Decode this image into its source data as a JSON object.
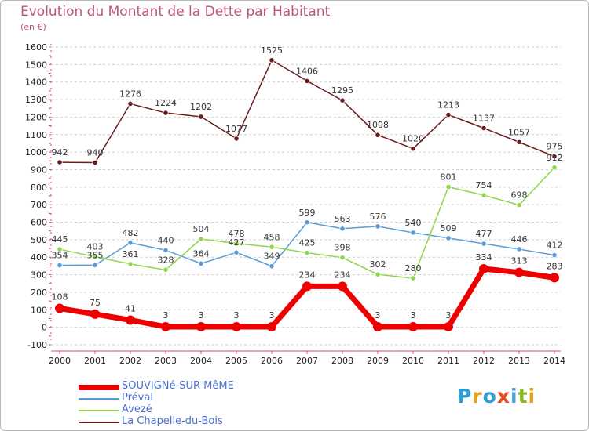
{
  "header": {
    "title": "Evolution du Montant de la Dette par Habitant",
    "subtitle": "(en €)"
  },
  "brand": {
    "logo_text": "Proxiti",
    "logo_colors": [
      "#2a9fd8",
      "#e8a21a",
      "#2a9fd8",
      "#e84c1a",
      "#4aa0dc",
      "#8ab820",
      "#e8a21a"
    ]
  },
  "chart_data": {
    "type": "line",
    "title": "Evolution du Montant de la Dette par Habitant",
    "subtitle": "(en €)",
    "x": [
      "2000",
      "2001",
      "2002",
      "2003",
      "2004",
      "2005",
      "2006",
      "2007",
      "2008",
      "2009",
      "2010",
      "2011",
      "2012",
      "2013",
      "2014"
    ],
    "ylim": [
      -100,
      1600
    ],
    "yticks": [
      -100,
      0,
      100,
      200,
      300,
      400,
      500,
      600,
      700,
      800,
      900,
      1000,
      1100,
      1200,
      1300,
      1400,
      1500,
      1600
    ],
    "grid": "horizontal dashed",
    "legend_position": "bottom-left",
    "series": [
      {
        "name": "SOUVIGNé-SUR-MêME",
        "color": "#ee0000",
        "emphasis": true,
        "values": [
          108,
          75,
          41,
          3,
          3,
          3,
          3,
          234,
          234,
          3,
          3,
          3,
          334,
          313,
          283
        ]
      },
      {
        "name": "Préval",
        "color": "#5b9bd5",
        "values": [
          354,
          355,
          482,
          440,
          364,
          427,
          349,
          599,
          563,
          576,
          540,
          509,
          477,
          446,
          412
        ]
      },
      {
        "name": "Avezé",
        "color": "#8fd64a",
        "values": [
          445,
          403,
          361,
          328,
          504,
          478,
          458,
          425,
          398,
          302,
          280,
          801,
          754,
          698,
          912
        ]
      },
      {
        "name": "La Chapelle-du-Bois",
        "color": "#6b1d1d",
        "values": [
          942,
          940,
          1276,
          1224,
          1202,
          1077,
          1525,
          1406,
          1295,
          1098,
          1020,
          1213,
          1137,
          1057,
          975
        ]
      }
    ]
  }
}
